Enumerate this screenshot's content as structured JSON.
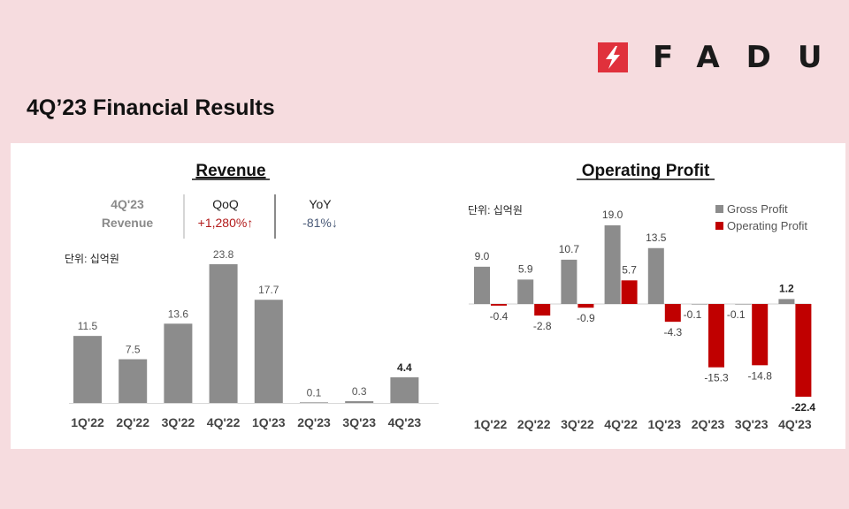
{
  "brand": {
    "name": "FADU",
    "color": "#e0313c"
  },
  "page_title": "4Q’23 Financial Results",
  "colors": {
    "gray": "#8c8c8c",
    "red": "#c00000",
    "qoq": "#b21a1a",
    "yoy": "#4a5a78"
  },
  "revenue_panel": {
    "title": "Revenue",
    "summary": {
      "label_line1": "4Q'23",
      "label_line2": "Revenue",
      "qoq_label": "QoQ",
      "qoq_value": "+1,280%↑",
      "yoy_label": "YoY",
      "yoy_value": "-81%↓"
    },
    "unit": "단위: 십억원"
  },
  "op_panel": {
    "title": "Operating Profit",
    "unit": "단위: 십억원"
  },
  "chart_data": [
    {
      "type": "bar",
      "title": "Revenue",
      "categories": [
        "1Q'22",
        "2Q'22",
        "3Q'22",
        "4Q'22",
        "1Q'23",
        "2Q'23",
        "3Q'23",
        "4Q'23"
      ],
      "values": [
        11.5,
        7.5,
        13.6,
        23.8,
        17.7,
        0.1,
        0.3,
        4.4
      ],
      "labels": [
        "11.5",
        "7.5",
        "13.6",
        "23.8",
        "17.7",
        "0.1",
        "0.3",
        "4.4"
      ],
      "highlight_index": 7,
      "ylim": [
        0,
        23.8
      ],
      "grid": false
    },
    {
      "type": "bar",
      "title": "Operating Profit",
      "categories": [
        "1Q'22",
        "2Q'22",
        "3Q'22",
        "4Q'22",
        "1Q'23",
        "2Q'23",
        "3Q'23",
        "4Q'23"
      ],
      "series": [
        {
          "name": "Gross Profit",
          "values": [
            9.0,
            5.9,
            10.7,
            19.0,
            13.5,
            -0.1,
            -0.1,
            1.2
          ],
          "labels": [
            "9.0",
            "5.9",
            "10.7",
            "19.0",
            "13.5",
            "-0.1",
            "-0.1",
            "1.2"
          ]
        },
        {
          "name": "Operating Profit",
          "values": [
            -0.4,
            -2.8,
            -0.9,
            5.7,
            -4.3,
            -15.3,
            -14.8,
            -22.4
          ],
          "labels": [
            "-0.4",
            "-2.8",
            "-0.9",
            "5.7",
            "-4.3",
            "-15.3",
            "-14.8",
            "-22.4"
          ]
        }
      ],
      "highlight_index": 7,
      "ylim": [
        -22.4,
        19.0
      ],
      "legend": "top-right",
      "grid": false
    }
  ]
}
